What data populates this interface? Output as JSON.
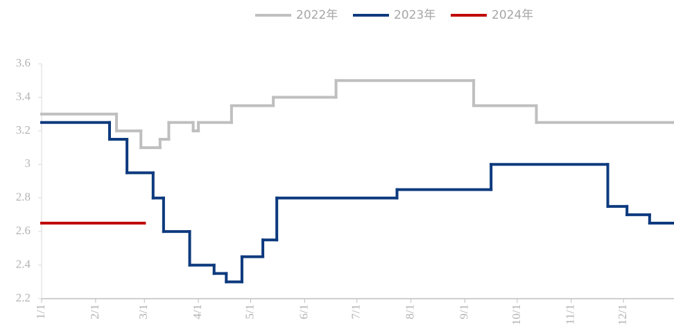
{
  "chart_data": {
    "type": "line",
    "step": true,
    "series": [
      {
        "name": "2022年",
        "color": "#bfbfbf",
        "x": [
          0,
          43,
          57,
          68,
          73,
          87,
          90,
          109,
          133,
          169,
          248,
          284,
          363
        ],
        "values": [
          3.3,
          3.2,
          3.1,
          3.15,
          3.25,
          3.2,
          3.25,
          3.35,
          3.4,
          3.5,
          3.35,
          3.25,
          3.25
        ]
      },
      {
        "name": "2023年",
        "color": "#0d3a7e",
        "x": [
          0,
          39,
          49,
          64,
          70,
          85,
          99,
          106,
          115,
          127,
          135,
          204,
          258,
          325,
          336,
          349,
          363
        ],
        "values": [
          3.25,
          3.15,
          2.95,
          2.8,
          2.6,
          2.4,
          2.35,
          2.3,
          2.45,
          2.55,
          2.8,
          2.85,
          3.0,
          2.75,
          2.7,
          2.65,
          2.65
        ]
      },
      {
        "name": "2024年",
        "color": "#c00000",
        "x": [
          0,
          59
        ],
        "values": [
          2.65,
          2.65
        ]
      }
    ],
    "xlim": [
      0,
      363
    ],
    "xticks": [
      {
        "value": 0,
        "label": "1/1"
      },
      {
        "value": 31,
        "label": "2/1"
      },
      {
        "value": 59,
        "label": "3/1"
      },
      {
        "value": 90,
        "label": "4/1"
      },
      {
        "value": 120,
        "label": "5/1"
      },
      {
        "value": 151,
        "label": "6/1"
      },
      {
        "value": 181,
        "label": "7/1"
      },
      {
        "value": 212,
        "label": "8/1"
      },
      {
        "value": 243,
        "label": "9/1"
      },
      {
        "value": 273,
        "label": "10/1"
      },
      {
        "value": 304,
        "label": "11/1"
      },
      {
        "value": 334,
        "label": "12/1"
      }
    ],
    "ylim": [
      2.2,
      3.6
    ],
    "yticks": [
      2.2,
      2.4,
      2.6,
      2.8,
      3,
      3.2,
      3.4,
      3.6
    ],
    "grid": false,
    "legend": "top"
  }
}
